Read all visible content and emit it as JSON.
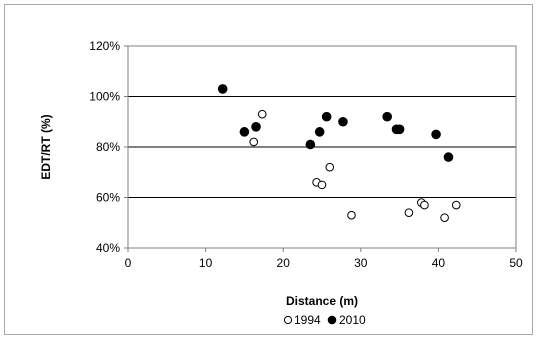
{
  "chart_data": {
    "type": "scatter",
    "title": "",
    "xlabel": "Distance (m)",
    "ylabel": "EDT/RT (%)",
    "xlim": [
      0,
      50
    ],
    "ylim": [
      40,
      120
    ],
    "x_ticks": [
      0,
      10,
      20,
      30,
      40,
      50
    ],
    "y_ticks": [
      40,
      60,
      80,
      100,
      120
    ],
    "x_tick_labels": [
      "0",
      "10",
      "20",
      "30",
      "40",
      "50"
    ],
    "y_tick_labels": [
      "40%",
      "60%",
      "80%",
      "100%",
      "120%"
    ],
    "grid": "horizontal",
    "legend_position": "bottom",
    "series": [
      {
        "name": "1994",
        "marker": "open-circle",
        "color": "#000000",
        "points": [
          [
            16.2,
            82
          ],
          [
            17.3,
            93
          ],
          [
            24.3,
            66
          ],
          [
            25.0,
            65
          ],
          [
            26.0,
            72
          ],
          [
            28.8,
            53
          ],
          [
            36.2,
            54
          ],
          [
            37.8,
            58
          ],
          [
            38.2,
            57
          ],
          [
            40.8,
            52
          ],
          [
            42.3,
            57
          ]
        ]
      },
      {
        "name": "2010",
        "marker": "filled-circle",
        "color": "#000000",
        "points": [
          [
            12.2,
            103
          ],
          [
            15.0,
            86
          ],
          [
            16.5,
            88
          ],
          [
            23.5,
            81
          ],
          [
            24.7,
            86
          ],
          [
            25.6,
            92
          ],
          [
            27.7,
            90
          ],
          [
            33.4,
            92
          ],
          [
            34.6,
            87
          ],
          [
            35.0,
            87
          ],
          [
            39.7,
            85
          ],
          [
            41.3,
            76
          ]
        ]
      }
    ]
  }
}
